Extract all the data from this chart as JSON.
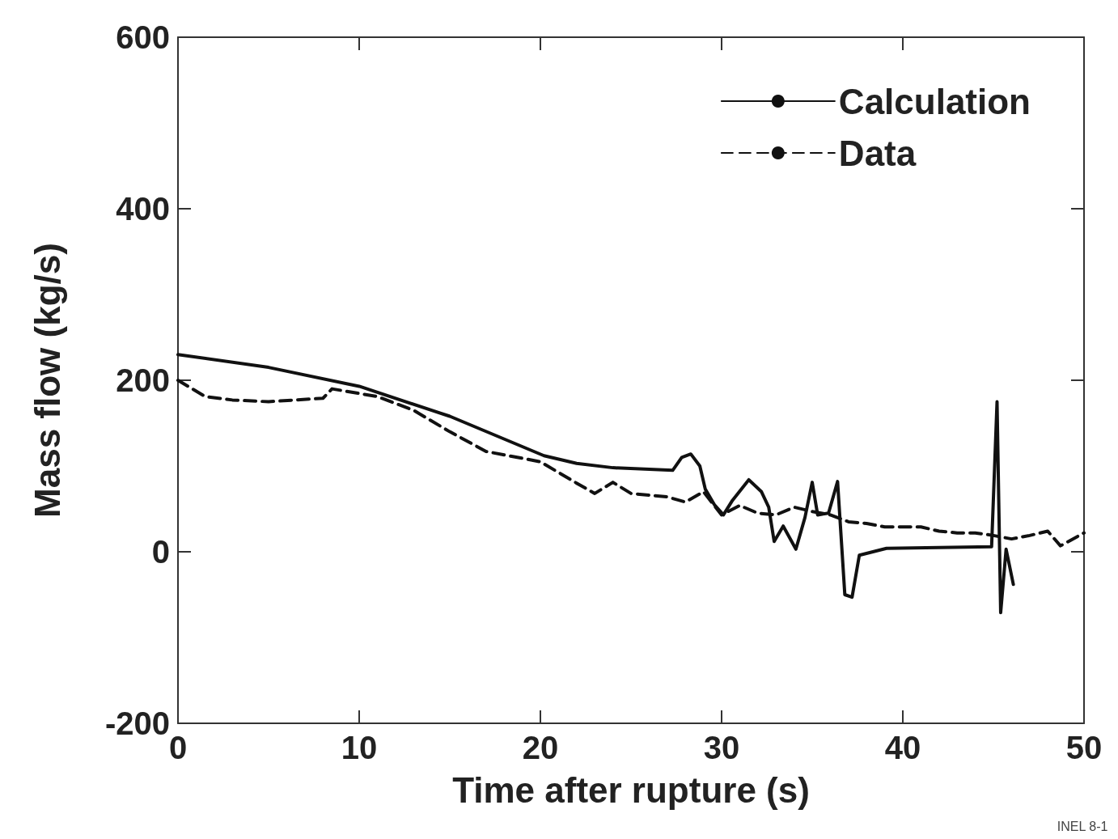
{
  "chart_data": {
    "type": "line",
    "xlabel": "Time after rupture (s)",
    "ylabel": "Mass flow (kg/s)",
    "xlim": [
      0,
      50
    ],
    "xticks": [
      0,
      10,
      20,
      30,
      40,
      50
    ],
    "ylim": [
      -200,
      600
    ],
    "yticks": [
      -200,
      0,
      200,
      400,
      600
    ],
    "grid": false,
    "legend": "top right",
    "marker": "none",
    "series": [
      {
        "name": "Calculation",
        "color": "#111111",
        "line_style": "solid",
        "x": [
          0,
          5,
          10,
          15,
          20.2,
          22,
          24,
          27.3,
          27.8,
          28.3,
          28.8,
          29.1,
          29.6,
          30.1,
          30.6,
          31.5,
          32.2,
          32.6,
          32.9,
          33.4,
          34.1,
          34.6,
          35,
          35.3,
          35.9,
          36.4,
          36.8,
          37.2,
          37.6,
          39.1,
          42,
          44.9,
          45.2,
          45.4,
          45.7,
          46.1
        ],
        "values": [
          230,
          215,
          193,
          158,
          112,
          103,
          98,
          95,
          110,
          114,
          100,
          73,
          55,
          43,
          60,
          84,
          70,
          52,
          12,
          30,
          3,
          40,
          81,
          43,
          45,
          82,
          -50,
          -53,
          -4,
          4,
          5,
          6,
          175,
          -71,
          3,
          -38
        ]
      },
      {
        "name": "Data",
        "color": "#111111",
        "line_style": "dashed",
        "x": [
          0,
          1.5,
          3,
          5,
          8,
          8.5,
          11,
          13,
          15,
          17,
          20,
          22,
          23,
          24,
          25,
          27,
          28,
          29,
          30,
          31,
          32,
          33,
          34,
          35,
          36,
          37,
          38,
          39,
          40,
          41,
          42,
          43,
          44,
          45,
          46,
          47,
          48,
          48.7,
          50
        ],
        "values": [
          200,
          181,
          177,
          175,
          179,
          190,
          181,
          165,
          140,
          117,
          105,
          80,
          68,
          81,
          68,
          64,
          58,
          70,
          43,
          54,
          45,
          43,
          52,
          47,
          43,
          35,
          33,
          29,
          29,
          29,
          24,
          22,
          22,
          19,
          15,
          19,
          24,
          7,
          22
        ]
      }
    ],
    "annotations": [
      "INEL 8-1"
    ]
  }
}
